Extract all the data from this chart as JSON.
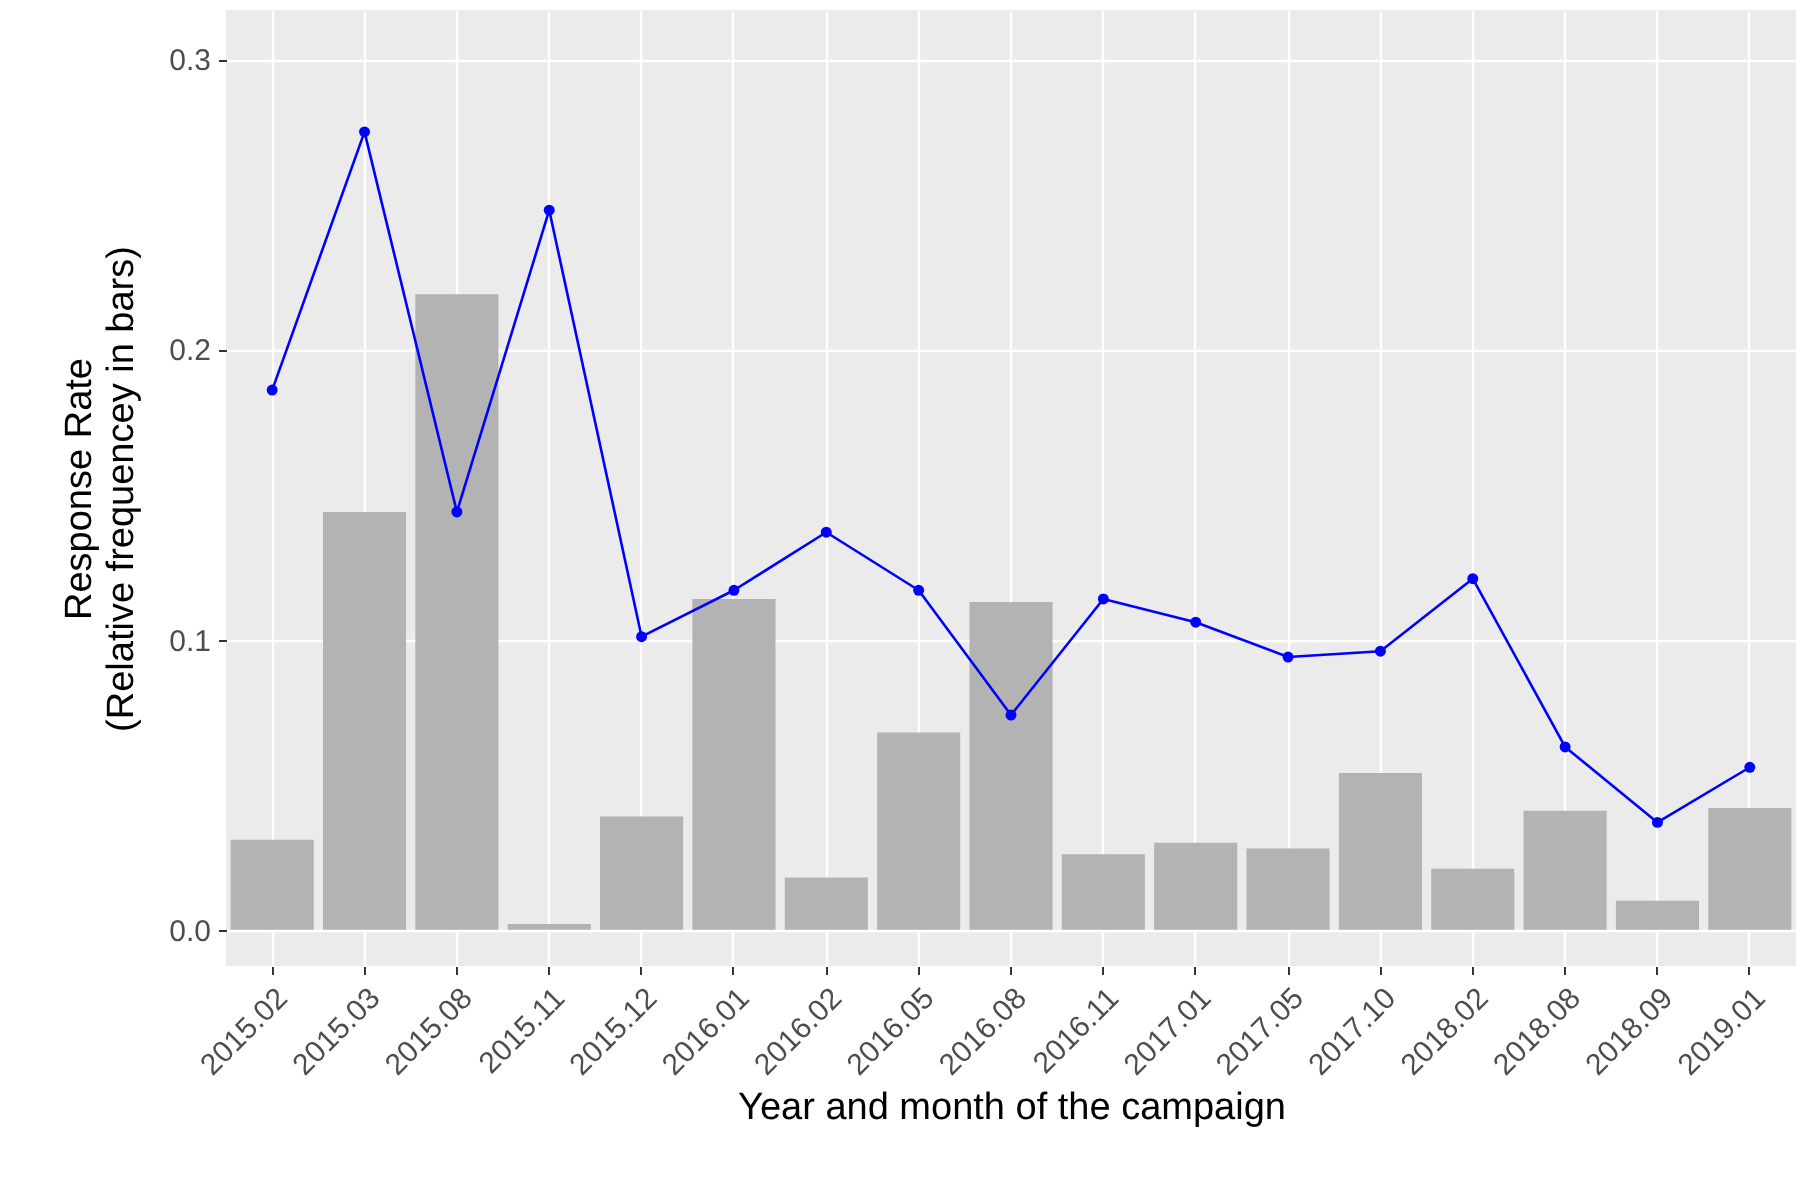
{
  "chart_data": {
    "type": "bar",
    "xlabel": "Year and month of the campaign",
    "ylabel": "Response Rate\n(Relative frequencey in bars)",
    "categories": [
      "2015.02",
      "2015.03",
      "2015.08",
      "2015.11",
      "2015.12",
      "2016.01",
      "2016.02",
      "2016.05",
      "2016.08",
      "2016.11",
      "2017.01",
      "2017.05",
      "2017.10",
      "2018.02",
      "2018.08",
      "2018.09",
      "2019.01"
    ],
    "series": [
      {
        "color": "#b3b3b3",
        "values": [
          0.031,
          0.144,
          0.219,
          0.002,
          0.039,
          0.114,
          0.018,
          0.068,
          0.113,
          0.026,
          0.03,
          0.028,
          0.054,
          0.021,
          0.041,
          0.01,
          0.042
        ]
      },
      {
        "type": "line",
        "color": "#0000ff",
        "marker": "circle",
        "values": [
          0.186,
          0.275,
          0.144,
          0.248,
          0.101,
          0.117,
          0.137,
          0.117,
          0.074,
          0.114,
          0.106,
          0.094,
          0.096,
          0.121,
          0.063,
          0.037,
          0.056
        ]
      }
    ],
    "ylim": [
      -0.0125,
      0.317
    ],
    "yticks": [
      {
        "value": 0,
        "label": "0.0"
      },
      {
        "value": 0.1,
        "label": "0.1"
      },
      {
        "value": 0.2,
        "label": "0.2"
      },
      {
        "value": 0.3,
        "label": "0.3"
      }
    ],
    "grid": true
  }
}
